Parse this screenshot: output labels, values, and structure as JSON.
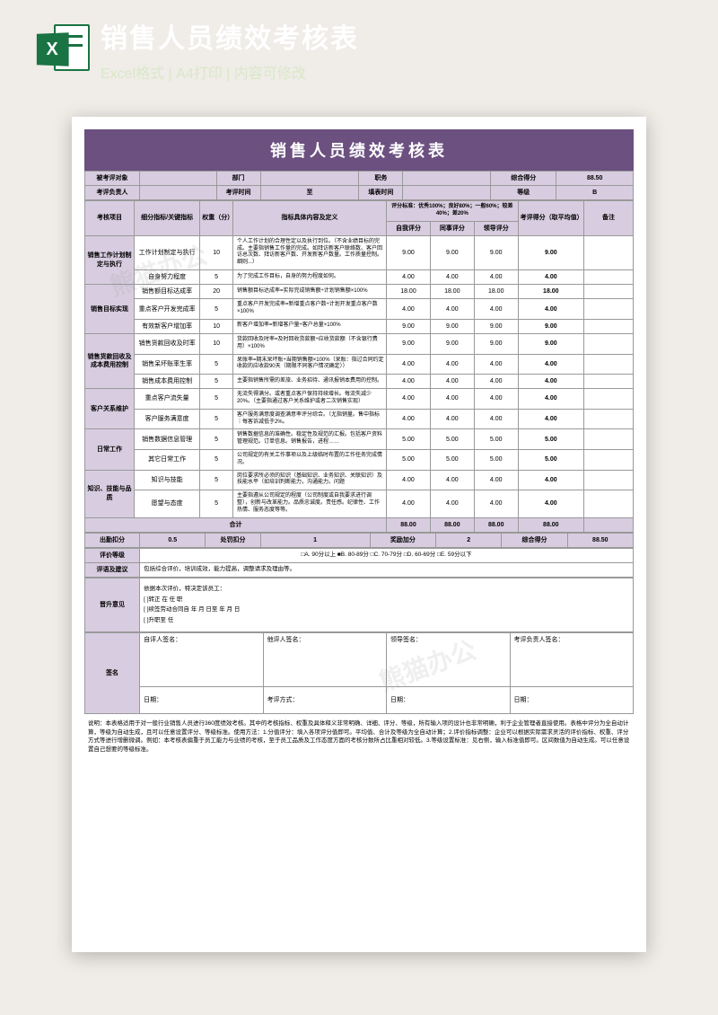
{
  "watermarks": [
    "熊猫办公",
    "熊猫办公"
  ],
  "header": {
    "icon_letter": "X",
    "main_title": "销售人员绩效考核表",
    "sub_title": "Excel格式 | A4打印 | 内容可修改"
  },
  "doc": {
    "title": "销售人员绩效考核表",
    "info_row1": {
      "c1": "被考评对象",
      "c2": "",
      "c3": "部门",
      "c4": "",
      "c5": "职务",
      "c6": "",
      "c7": "综合得分",
      "c8": "88.50"
    },
    "info_row2": {
      "c1": "考评负责人",
      "c2": "",
      "c3": "考评时间",
      "c4": "至",
      "c5": "填表时间",
      "c6": "",
      "c7": "等级",
      "c8": "B"
    },
    "col_headers": {
      "c1": "考核项目",
      "c2": "细分指标/关键指标",
      "c3": "权重（分）",
      "c4": "指标具体内容及定义",
      "c5": "评分标准：优秀100%；良好80%；一般60%；较差40%；差20%",
      "c5a": "自我评分",
      "c5b": "同事评分",
      "c5c": "领导评分",
      "c6": "考评得分（取平均值）",
      "c7": "备注"
    },
    "sections": [
      {
        "name": "销售工作计划制定与执行",
        "rows": [
          {
            "indicator": "工作计划制定与执行",
            "weight": "10",
            "desc": "个人工作计划的合理性定以及执行到位。（不含业绩目标的完成。主要指销售工作量的完成。如拜访新客户联络数、客户回访总次数、拜访新客户数、开发新客户数量。工作质量控制。细则...）",
            "s1": "9.00",
            "s2": "9.00",
            "s3": "9.00",
            "avg": "9.00"
          },
          {
            "indicator": "自身努力程度",
            "weight": "5",
            "desc": "为了完成工作目标，自身的努力程度如何。",
            "s1": "4.00",
            "s2": "4.00",
            "s3": "4.00",
            "avg": "4.00"
          }
        ]
      },
      {
        "name": "销售目标实现",
        "rows": [
          {
            "indicator": "销售额目标达成率",
            "weight": "20",
            "desc": "销售额目标达成率=实际完成销售额÷计划销售额×100%",
            "s1": "18.00",
            "s2": "18.00",
            "s3": "18.00",
            "avg": "18.00"
          },
          {
            "indicator": "重点客户开发完成率",
            "weight": "5",
            "desc": "重点客户开发完成率=新增重点客户数÷计划开发重点客户数×100%",
            "s1": "4.00",
            "s2": "4.00",
            "s3": "4.00",
            "avg": "4.00"
          },
          {
            "indicator": "有效新客户增加率",
            "weight": "10",
            "desc": "新客户增加率=新增客户量÷客户总量×100%",
            "s1": "9.00",
            "s2": "9.00",
            "s3": "9.00",
            "avg": "9.00"
          }
        ]
      },
      {
        "name": "销售货款回收及成本费用控制",
        "rows": [
          {
            "indicator": "销售货款回收及时率",
            "weight": "10",
            "desc": "货款回收及时率=及时回收货款额÷应收货款额（不含银行费用）×100%",
            "s1": "9.00",
            "s2": "9.00",
            "s3": "9.00",
            "avg": "9.00"
          },
          {
            "indicator": "销售呆坏账率生率",
            "weight": "5",
            "desc": "呆账率=期末呆坏账÷当期销售额×100%（呆账：指过合同约定收款的应收款90天（期限不同客户情况确定））",
            "s1": "4.00",
            "s2": "4.00",
            "s3": "4.00",
            "avg": "4.00"
          },
          {
            "indicator": "销售成本费用控制",
            "weight": "5",
            "desc": "主要指销售所需的差旅、业务招待、通讯报销本费用的控制。",
            "s1": "4.00",
            "s2": "4.00",
            "s3": "4.00",
            "avg": "4.00"
          }
        ]
      },
      {
        "name": "客户关系维护",
        "rows": [
          {
            "indicator": "重点客户流失量",
            "weight": "5",
            "desc": "无流失得满分。或者重点客户保持持续增长。每流失减少20%。（主要指通过客户关系维护或者二次销售实现）",
            "s1": "4.00",
            "s2": "4.00",
            "s3": "4.00",
            "avg": "4.00"
          },
          {
            "indicator": "客户服务满意度",
            "weight": "5",
            "desc": "客户服务满意度调查满意率评分综合。（尤指销量。售中指标｜每客诉减低于2%。",
            "s1": "4.00",
            "s2": "4.00",
            "s3": "4.00",
            "avg": "4.00"
          }
        ]
      },
      {
        "name": "日常工作",
        "rows": [
          {
            "indicator": "销售数据信息管理",
            "weight": "5",
            "desc": "销售数据信息的准确性。稳定性及规范的汇报。包括客户资料管理规范。订单信息。销售报告，进程……",
            "s1": "5.00",
            "s2": "5.00",
            "s3": "5.00",
            "avg": "5.00"
          },
          {
            "indicator": "其它日常工作",
            "weight": "5",
            "desc": "公司规定的有关工作事项以及上级临时布置的工作任务完成情况。",
            "s1": "5.00",
            "s2": "5.00",
            "s3": "5.00",
            "avg": "5.00"
          }
        ]
      },
      {
        "name": "知识、技能与品质",
        "rows": [
          {
            "indicator": "知识与技能",
            "weight": "5",
            "desc": "岗位要求所必须的知识（基础知识、业务知识、关联知识）及技能水平（如培训判断能力，沟通能力。问题",
            "s1": "4.00",
            "s2": "4.00",
            "s3": "4.00",
            "avg": "4.00"
          },
          {
            "indicator": "愿望与态度",
            "weight": "5",
            "desc": "主要指遵从公司规定的程度（公司制度或自我要求进行调整），创新与改革能力。品质忠诚度。责任感。纪律性、工作热情、服务态度等等。",
            "s1": "4.00",
            "s2": "4.00",
            "s3": "4.00",
            "avg": "4.00"
          }
        ]
      }
    ],
    "total": {
      "label": "合计",
      "s1": "88.00",
      "s2": "88.00",
      "s3": "88.00",
      "avg": "88.00"
    },
    "adjust": {
      "c1": "出勤扣分",
      "v1": "0.5",
      "c2": "处罚扣分",
      "v2": "1",
      "c3": "奖励加分",
      "v3": "2",
      "c4": "综合得分",
      "v4": "88.50"
    },
    "grade_row": {
      "label": "评价等级",
      "text": "□A. 90分以上  ■B. 80-89分  □C. 70-79分  □D. 60-69分  □E. 59分以下"
    },
    "suggest": {
      "label": "评语及建议",
      "text": "包括综合评价，培训成效，能力提高，调整请求及理由等。"
    },
    "promote": {
      "label": "晋升意见",
      "lines": [
        "依据本次评价，特决定该员工：",
        "[ ]转正  在      任      职",
        "[ ]续签劳动合同自      年    月    日至      年    月    日",
        "[ ]升职至      任"
      ]
    },
    "sign": {
      "label": "签名",
      "c1": "自评人签名：",
      "c2": "他评人签名：",
      "c3": "领导签名：",
      "c4": "考评负责人签名：",
      "d": "日期：",
      "m": "考评方式："
    },
    "notes": "说明：本表格适用于对一般行业销售人员进行360度绩效考核。其中的考核指标、权重及具体释义非常明确、详细、评分、等级，所有输入项的设计也非常明确，利于企业管理者直接使用。表格中评分为全自动计算，等级为自动生成，且可以任意设置评分、等级标准。使用方法：1.分值评分：填入各项评分值即可。平均值、合计及等级为全自动计算；2.评价指标调整：企业可以根据实际需求灵活的评价指标、权重、评分方式等进行增删微调。例如：本考核表偏重于员工能力与业绩的考核，至于员工品质及工作态度方面的考核分数所占比重相对较低。3.等级设置标准：见右侧，输入标准值即可。区间数值为自动生成。可以任意设置自己想要的等级标准。"
  }
}
